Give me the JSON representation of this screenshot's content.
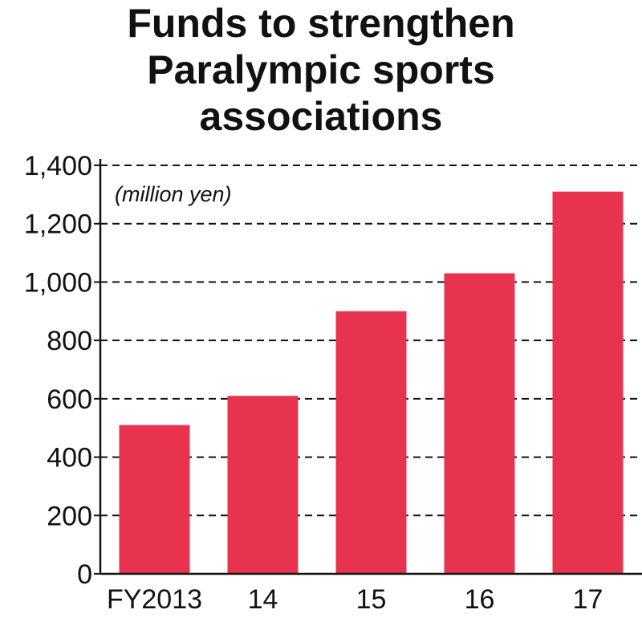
{
  "chart_data": {
    "type": "bar",
    "title_lines": [
      "Funds to strengthen",
      "Paralympic sports",
      "associations"
    ],
    "unit_label": "(million yen)",
    "categories": [
      "FY2013",
      "14",
      "15",
      "16",
      "17"
    ],
    "values": [
      510,
      610,
      900,
      1030,
      1310
    ],
    "ylim": [
      0,
      1400
    ],
    "y_ticks": [
      0,
      200,
      400,
      600,
      800,
      1000,
      1200,
      1400
    ],
    "y_tick_labels": [
      "0",
      "200",
      "400",
      "600",
      "800",
      "1,000",
      "1,200",
      "1,400"
    ],
    "grid": "dashed horizontal",
    "bar_color": "#e8334f"
  }
}
